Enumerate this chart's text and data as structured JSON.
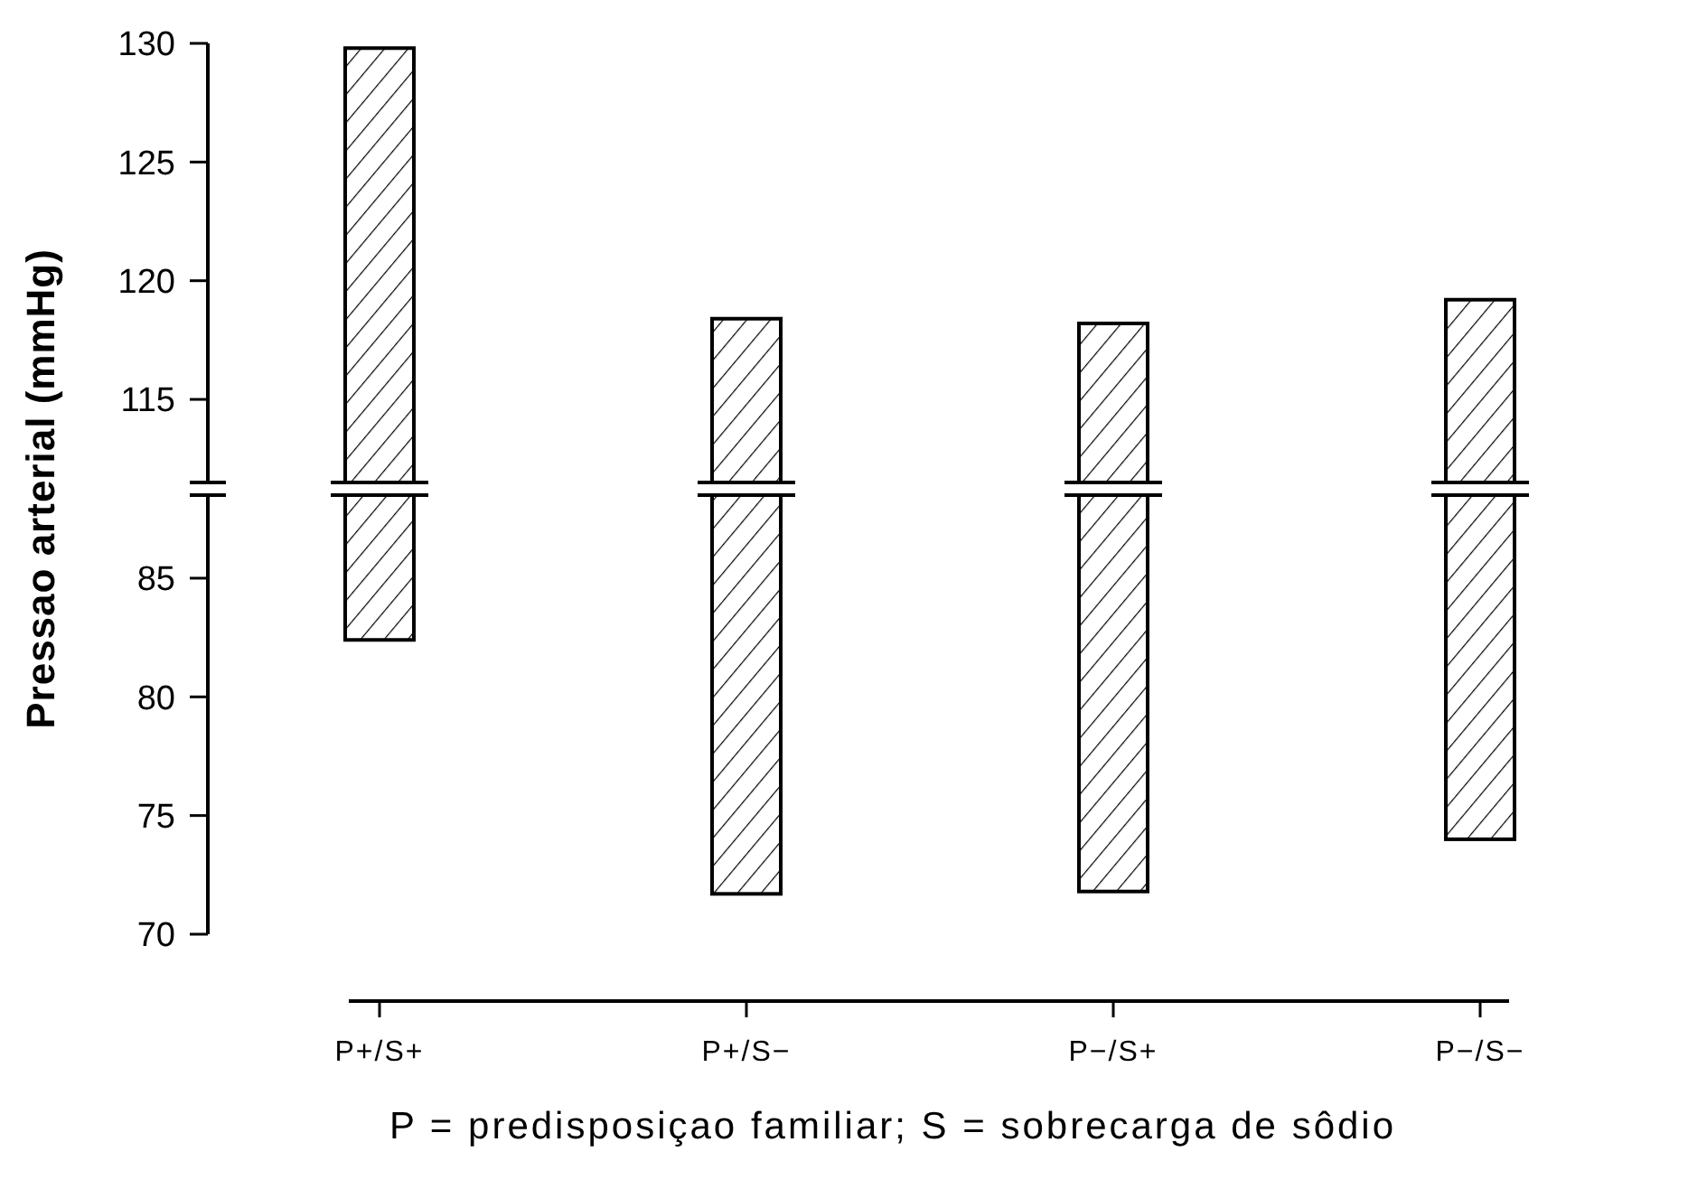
{
  "chart_data": [
    {
      "type": "bar",
      "base": [
        111.5,
        111.5,
        111.5,
        111.5
      ],
      "values": [
        18.3,
        6.9,
        6.7,
        7.7
      ],
      "color": "#000000",
      "ylim": [
        111.5,
        130
      ],
      "yticks": [
        115,
        120,
        125,
        130
      ],
      "ylabel": "Pressao arterial (mmHg)",
      "tick_labels": "y"
    },
    {
      "type": "bar",
      "categories": [
        "P+/S+",
        "P+/S−",
        "P−/S+",
        "P−/S−"
      ],
      "base": [
        82.4,
        71.7,
        71.8,
        74.0
      ],
      "values": [
        6.1,
        16.8,
        16.7,
        14.5
      ],
      "color": "#000000",
      "ylim": [
        70,
        88.5
      ],
      "yticks": [
        70,
        75,
        80,
        85
      ],
      "xlabel": "P = predisposiçao familiar; S = sobrecarga de sôdio"
    }
  ]
}
